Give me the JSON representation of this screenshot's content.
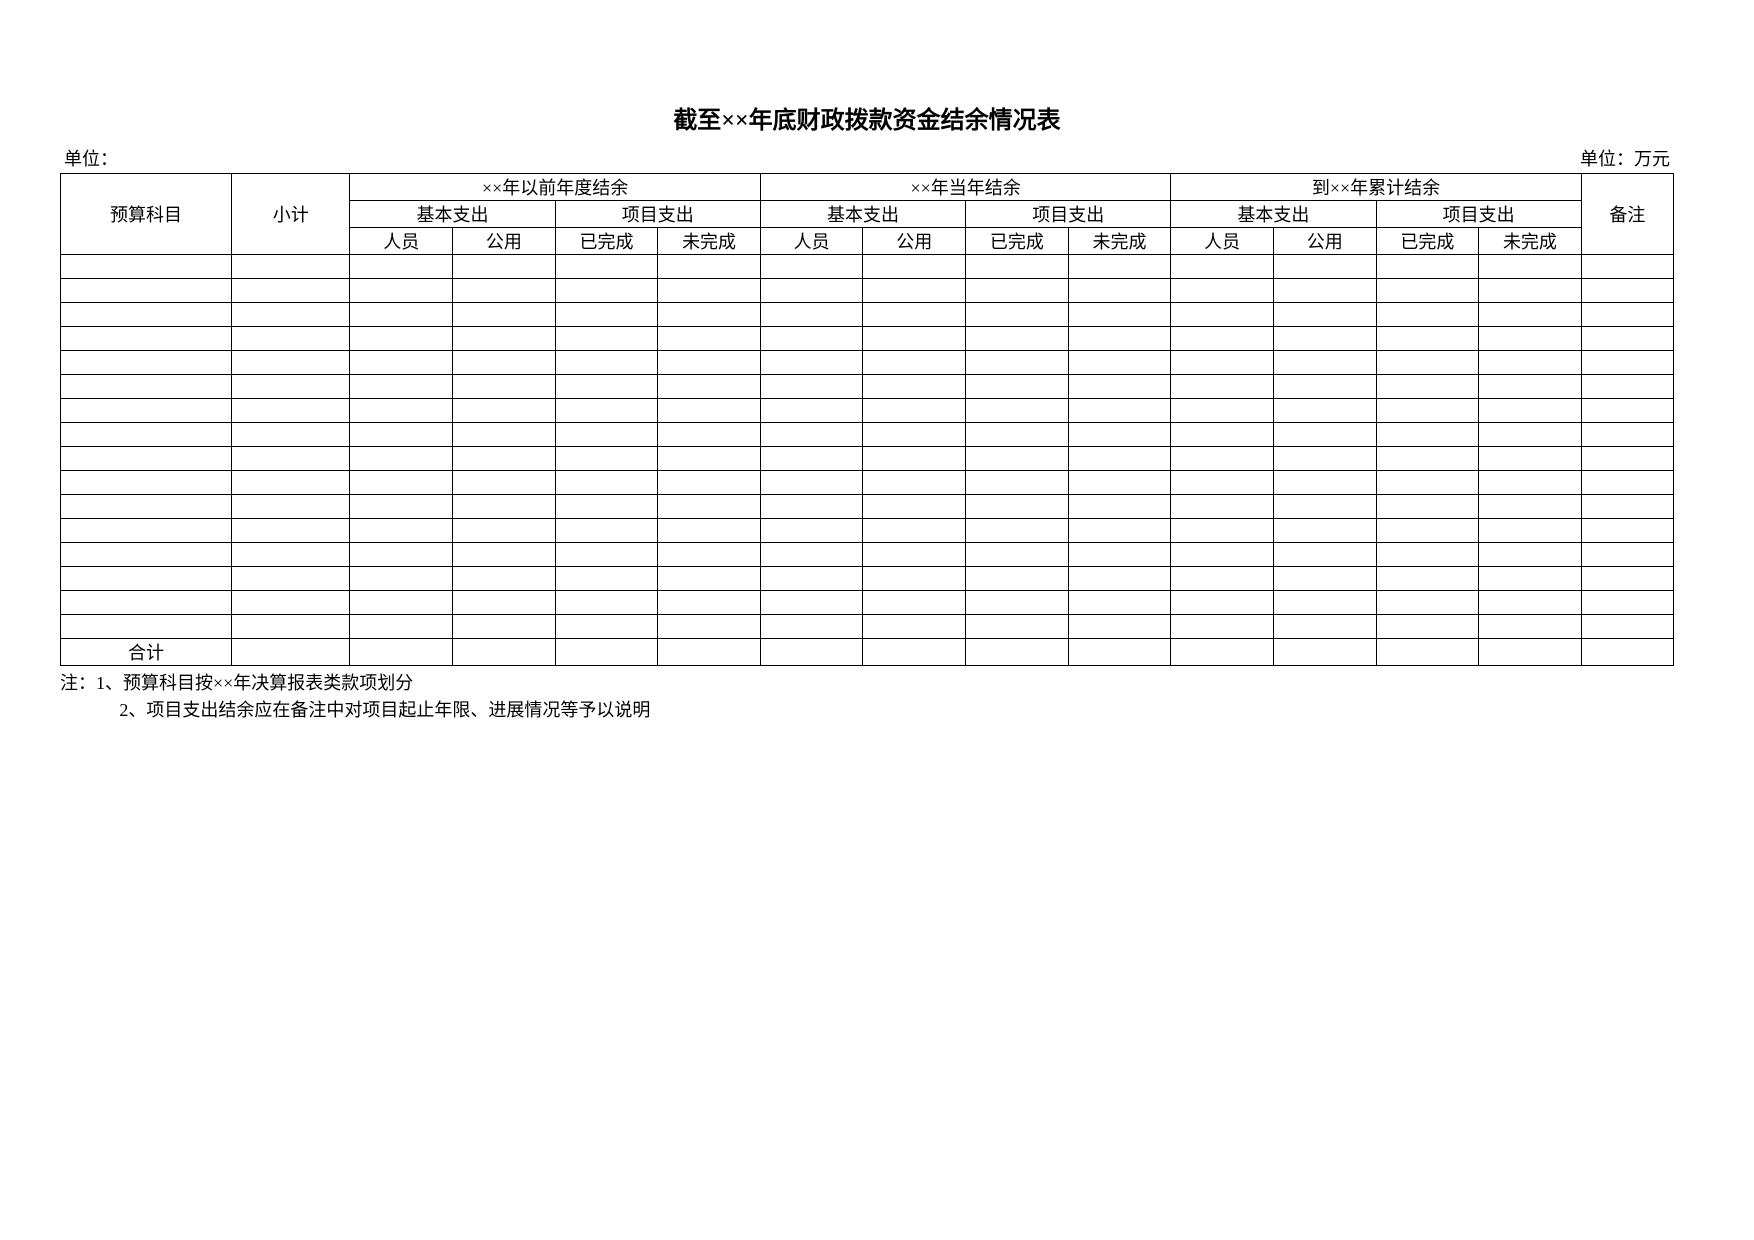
{
  "title": "截至××年底财政拨款资金结余情况表",
  "meta": {
    "unit_left": "单位：",
    "unit_right": "单位：万元"
  },
  "headers": {
    "col_budget": "预算科目",
    "col_subtotal": "小计",
    "col_remark": "备注",
    "group1": "××年以前年度结余",
    "group2": "××年当年结余",
    "group3": "到××年累计结余",
    "sub_basic": "基本支出",
    "sub_project": "项目支出",
    "leaf_person": "人员",
    "leaf_public": "公用",
    "leaf_done": "已完成",
    "leaf_undone": "未完成"
  },
  "table": {
    "empty_row_count": 16,
    "total_label": "合计",
    "column_count": 15
  },
  "notes": {
    "line1": "注：1、预算科目按××年决算报表类款项划分",
    "line2": "2、项目支出结余应在备注中对项目起止年限、进展情况等予以说明"
  },
  "style": {
    "border_color": "#000000",
    "background_color": "#ffffff",
    "title_fontsize": 24,
    "body_fontsize": 18
  }
}
